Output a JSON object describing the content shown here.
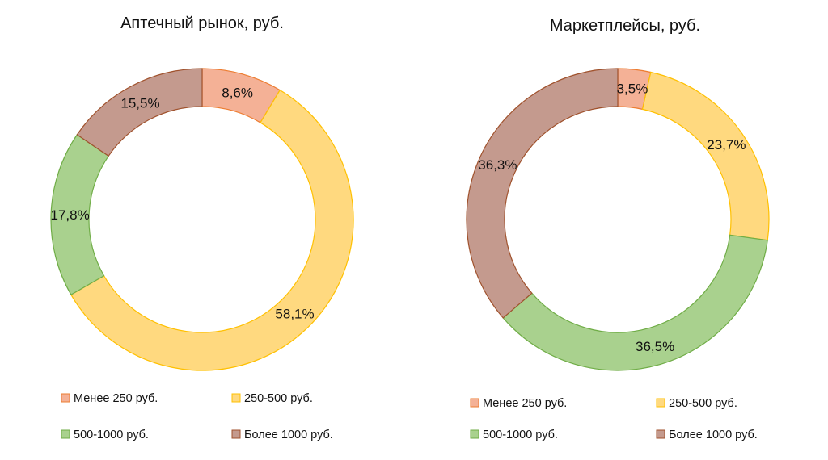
{
  "colors": {
    "menee250": {
      "fill": "#f4b196",
      "stroke": "#ed7d31"
    },
    "r250_500": {
      "fill": "#ffd97f",
      "stroke": "#ffc000"
    },
    "r500_1000": {
      "fill": "#a9d18e",
      "stroke": "#70ad47"
    },
    "bolee1000": {
      "fill": "#c49a8e",
      "stroke": "#a0522d"
    }
  },
  "chart_data": [
    {
      "type": "pie",
      "variant": "donut",
      "title": "Аптечный рынок, руб.",
      "categories": [
        "Менее 250 руб.",
        "250-500 руб.",
        "500-1000 руб.",
        "Более 1000 руб."
      ],
      "values": [
        8.6,
        58.1,
        17.8,
        15.5
      ],
      "labels": [
        "8,6%",
        "58,1%",
        "17,8%",
        "15,5%"
      ],
      "legend_position": "bottom"
    },
    {
      "type": "pie",
      "variant": "donut",
      "title": "Маркетплейсы, руб.",
      "categories": [
        "Менее 250 руб.",
        "250-500 руб.",
        "500-1000 руб.",
        "Более 1000 руб."
      ],
      "values": [
        3.5,
        23.7,
        36.5,
        36.3
      ],
      "labels": [
        "3,5%",
        "23,7%",
        "36,5%",
        "36,3%"
      ],
      "legend_position": "bottom"
    }
  ]
}
